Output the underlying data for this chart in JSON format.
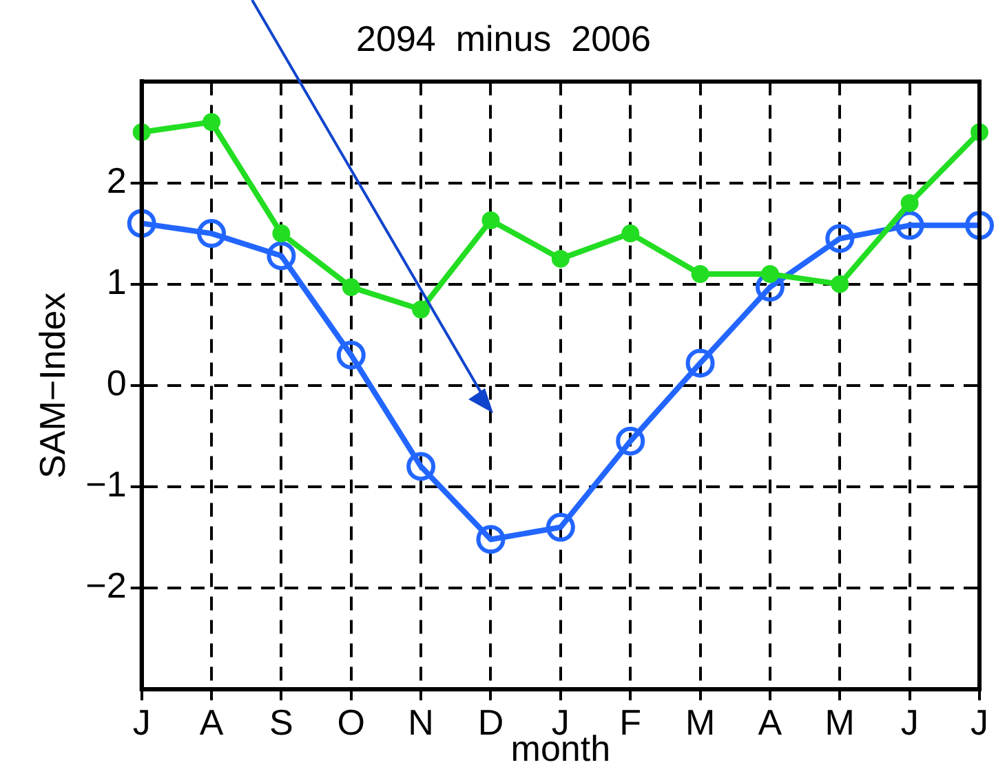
{
  "chart_data": {
    "type": "line",
    "title": "2094  minus  2006",
    "xlabel": "month",
    "ylabel": "SAM−Index",
    "categories": [
      "J",
      "A",
      "S",
      "O",
      "N",
      "D",
      "J",
      "F",
      "M",
      "A",
      "M",
      "J",
      "J"
    ],
    "series": [
      {
        "color": "#22dd22",
        "marker": "circle",
        "values": [
          2.5,
          2.6,
          1.5,
          0.97,
          0.75,
          1.63,
          1.25,
          1.5,
          1.1,
          1.1,
          1.0,
          1.8,
          2.5
        ]
      },
      {
        "color": "#2266ff",
        "marker": "circle",
        "values": [
          1.6,
          1.5,
          1.28,
          0.3,
          -0.8,
          -1.52,
          -1.4,
          -0.55,
          0.22,
          0.97,
          1.45,
          1.58,
          1.58
        ]
      }
    ],
    "ylim": [
      -3,
      3
    ],
    "yticks": [
      {
        "value": -2,
        "label": "−2"
      },
      {
        "value": -1,
        "label": "−1"
      },
      0,
      1,
      2
    ],
    "grid": true,
    "legend": false,
    "line_style": "solid"
  }
}
